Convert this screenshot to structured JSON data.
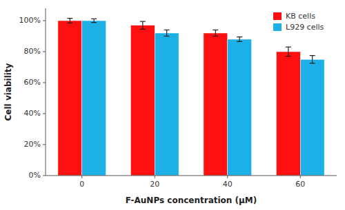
{
  "chart_data": {
    "type": "bar",
    "categories": [
      "0",
      "20",
      "40",
      "60"
    ],
    "series": [
      {
        "name": "KB cells",
        "color": "#FF1010",
        "values": [
          100,
          97,
          92,
          80
        ],
        "errors": [
          1.5,
          2.5,
          2.0,
          3.0
        ]
      },
      {
        "name": "L929 cells",
        "color": "#1DB0E6",
        "values": [
          100,
          92,
          88,
          75
        ],
        "errors": [
          1.2,
          2.0,
          1.5,
          2.5
        ]
      }
    ],
    "xlabel": "F-AuNPs concentration (μM)",
    "ylabel": "Cell viability",
    "ylim": [
      0,
      108
    ],
    "yticks": [
      {
        "value": 0,
        "label": "0%"
      },
      {
        "value": 20,
        "label": "20%"
      },
      {
        "value": 40,
        "label": "40%"
      },
      {
        "value": 60,
        "label": "60%"
      },
      {
        "value": 80,
        "label": "80%"
      },
      {
        "value": 100,
        "label": "100%"
      }
    ],
    "legend": "upper right",
    "grid": false
  }
}
